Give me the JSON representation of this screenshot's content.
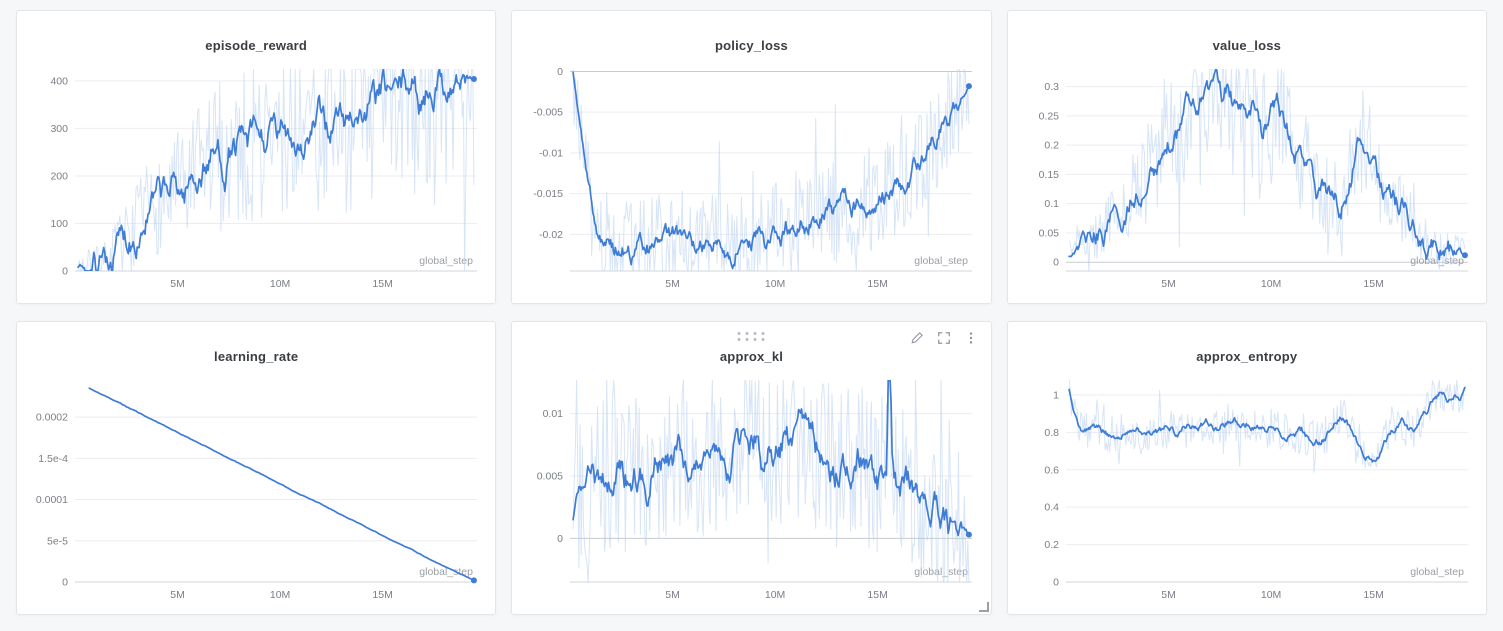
{
  "page": {
    "colors": {
      "accent": "#3e7cd6",
      "raw_line": "#b7d0f0",
      "grid_line": "#ebedf0",
      "zero_line": "#c7cbd1",
      "axis_line": "#d2d6db",
      "tick_text": "#7a7e85",
      "axis_label_text": "#9a9ea5",
      "title_text": "#3a3d42",
      "panel_bg": "#ffffff",
      "page_bg": "#f6f7f9"
    },
    "panel_controls": {
      "icons": [
        "drag-handle-icon",
        "edit-icon",
        "fullscreen-icon",
        "kebab-menu-icon",
        "resize-handle"
      ]
    }
  },
  "chart_data": [
    {
      "type": "line",
      "title": "episode_reward",
      "xlabel": "global_step",
      "xlim": [
        0,
        19.6
      ],
      "ylim": [
        0,
        425
      ],
      "x_ticks": [
        {
          "v": 5,
          "label": "5M"
        },
        {
          "v": 10,
          "label": "10M"
        },
        {
          "v": 15,
          "label": "15M"
        }
      ],
      "y_ticks": [
        {
          "v": 0,
          "label": "0"
        },
        {
          "v": 100,
          "label": "100"
        },
        {
          "v": 200,
          "label": "200"
        },
        {
          "v": 300,
          "label": "300"
        },
        {
          "v": 400,
          "label": "400"
        }
      ],
      "noise_amp": 170,
      "noise_scale_with_value": true,
      "end_dot": true,
      "series": [
        {
          "name": "smoothed",
          "x": [
            0.15,
            0.5,
            1,
            1.5,
            2,
            2.5,
            3,
            3.5,
            4,
            4.5,
            5,
            5.3,
            5.6,
            6,
            6.5,
            7,
            7.3,
            7.6,
            8,
            8.4,
            8.8,
            9.2,
            9.6,
            10,
            10.4,
            10.8,
            11.2,
            11.6,
            12,
            12.4,
            12.8,
            13.2,
            13.6,
            14,
            14.4,
            14.8,
            15.2,
            15.6,
            16,
            16.4,
            16.8,
            17,
            17.3,
            17.6,
            18,
            18.4,
            18.8,
            19.1,
            19.45
          ],
          "y": [
            8,
            8,
            12,
            22,
            50,
            70,
            95,
            125,
            140,
            155,
            175,
            160,
            185,
            205,
            235,
            250,
            230,
            255,
            270,
            245,
            280,
            260,
            285,
            265,
            300,
            285,
            270,
            295,
            310,
            295,
            325,
            310,
            340,
            330,
            345,
            360,
            375,
            365,
            385,
            395,
            350,
            380,
            395,
            405,
            400,
            400,
            402,
            400,
            404
          ]
        }
      ]
    },
    {
      "type": "line",
      "title": "policy_loss",
      "xlabel": "global_step",
      "xlim": [
        0,
        19.6
      ],
      "ylim": [
        -0.0245,
        0.0003
      ],
      "x_ticks": [
        {
          "v": 5,
          "label": "5M"
        },
        {
          "v": 10,
          "label": "10M"
        },
        {
          "v": 15,
          "label": "15M"
        }
      ],
      "y_ticks": [
        {
          "v": 0,
          "label": "0"
        },
        {
          "v": -0.005,
          "label": "-0.005"
        },
        {
          "v": -0.01,
          "label": "-0.01"
        },
        {
          "v": -0.015,
          "label": "-0.015"
        },
        {
          "v": -0.02,
          "label": "-0.02"
        }
      ],
      "noise_amp": 0.0065,
      "noise_scale_with_value": false,
      "end_dot": true,
      "series": [
        {
          "name": "smoothed",
          "x": [
            0.15,
            0.3,
            0.5,
            0.7,
            0.9,
            1.1,
            1.4,
            1.7,
            2,
            2.4,
            2.8,
            3.2,
            3.6,
            4,
            4.4,
            4.8,
            5.2,
            5.6,
            6,
            6.4,
            6.8,
            7.2,
            7.6,
            8,
            8.4,
            8.8,
            9.2,
            9.6,
            10,
            10.4,
            10.8,
            11.2,
            11.6,
            12,
            12.4,
            12.8,
            13.2,
            13.6,
            14,
            14.4,
            14.8,
            15.2,
            15.6,
            16,
            16.4,
            16.8,
            17.2,
            17.6,
            18,
            18.4,
            18.8,
            19.2,
            19.45
          ],
          "y": [
            -0.0001,
            -0.003,
            -0.007,
            -0.011,
            -0.0145,
            -0.017,
            -0.0195,
            -0.021,
            -0.0215,
            -0.022,
            -0.0213,
            -0.0218,
            -0.021,
            -0.0215,
            -0.0208,
            -0.0213,
            -0.0205,
            -0.0212,
            -0.0217,
            -0.021,
            -0.0215,
            -0.0212,
            -0.0221,
            -0.0212,
            -0.0203,
            -0.021,
            -0.0205,
            -0.0208,
            -0.0198,
            -0.0193,
            -0.0188,
            -0.0183,
            -0.0185,
            -0.0178,
            -0.0172,
            -0.0176,
            -0.0168,
            -0.016,
            -0.0165,
            -0.0152,
            -0.0157,
            -0.0143,
            -0.0146,
            -0.0132,
            -0.0127,
            -0.0118,
            -0.0108,
            -0.0092,
            -0.0078,
            -0.006,
            -0.0045,
            -0.0028,
            -0.0018
          ]
        }
      ]
    },
    {
      "type": "line",
      "title": "value_loss",
      "xlabel": "global_step",
      "xlim": [
        0,
        19.6
      ],
      "ylim": [
        -0.015,
        0.33
      ],
      "x_ticks": [
        {
          "v": 5,
          "label": "5M"
        },
        {
          "v": 10,
          "label": "10M"
        },
        {
          "v": 15,
          "label": "15M"
        }
      ],
      "y_ticks": [
        {
          "v": 0,
          "label": "0"
        },
        {
          "v": 0.05,
          "label": "0.05"
        },
        {
          "v": 0.1,
          "label": "0.1"
        },
        {
          "v": 0.15,
          "label": "0.15"
        },
        {
          "v": 0.2,
          "label": "0.2"
        },
        {
          "v": 0.25,
          "label": "0.25"
        },
        {
          "v": 0.3,
          "label": "0.3"
        }
      ],
      "noise_amp": 0.1,
      "noise_scale_with_value": true,
      "end_dot": true,
      "series": [
        {
          "name": "smoothed",
          "x": [
            0.15,
            0.5,
            1,
            1.5,
            2,
            2.5,
            3,
            3.5,
            4,
            4.5,
            5,
            5.4,
            5.8,
            6.1,
            6.4,
            6.7,
            7,
            7.3,
            7.6,
            7.9,
            8.2,
            8.5,
            8.8,
            9.2,
            9.6,
            10,
            10.3,
            10.6,
            11,
            11.4,
            11.8,
            12.2,
            12.6,
            13,
            13.4,
            13.8,
            14.1,
            14.4,
            14.7,
            15,
            15.4,
            15.8,
            16.2,
            16.6,
            17,
            17.4,
            17.8,
            18.2,
            18.6,
            19,
            19.45
          ],
          "y": [
            0.01,
            0.02,
            0.04,
            0.05,
            0.06,
            0.08,
            0.1,
            0.13,
            0.15,
            0.17,
            0.2,
            0.22,
            0.25,
            0.28,
            0.24,
            0.26,
            0.29,
            0.31,
            0.28,
            0.3,
            0.27,
            0.29,
            0.25,
            0.26,
            0.22,
            0.24,
            0.27,
            0.23,
            0.2,
            0.18,
            0.16,
            0.13,
            0.12,
            0.11,
            0.1,
            0.14,
            0.18,
            0.22,
            0.19,
            0.16,
            0.12,
            0.1,
            0.095,
            0.085,
            0.06,
            0.04,
            0.025,
            0.02,
            0.02,
            0.015,
            0.012
          ]
        }
      ]
    },
    {
      "type": "line",
      "title": "learning_rate",
      "xlabel": "global_step",
      "xlim": [
        0,
        19.6
      ],
      "ylim": [
        0,
        0.000245
      ],
      "x_ticks": [
        {
          "v": 5,
          "label": "5M"
        },
        {
          "v": 10,
          "label": "10M"
        },
        {
          "v": 15,
          "label": "15M"
        }
      ],
      "y_ticks": [
        {
          "v": 0,
          "label": "0"
        },
        {
          "v": 5e-05,
          "label": "5e-5"
        },
        {
          "v": 0.0001,
          "label": "0.0001"
        },
        {
          "v": 0.00015,
          "label": "1.5e-4"
        },
        {
          "v": 0.0002,
          "label": "0.0002"
        }
      ],
      "noise_amp": 2e-06,
      "noise_scale_with_value": false,
      "show_raw": false,
      "end_dot": true,
      "series": [
        {
          "name": "value",
          "x": [
            0.7,
            2,
            4,
            6,
            8,
            10,
            12,
            14,
            16,
            18,
            19.45
          ],
          "y": [
            0.000235,
            0.000219,
            0.000194,
            0.000169,
            0.000144,
            0.000119,
            9.4e-05,
            6.9e-05,
            4.4e-05,
            1.9e-05,
            2e-06
          ]
        }
      ]
    },
    {
      "type": "line",
      "title": "approx_kl",
      "xlabel": "global_step",
      "xlim": [
        0,
        19.6
      ],
      "ylim": [
        -0.0035,
        0.0127
      ],
      "x_ticks": [
        {
          "v": 5,
          "label": "5M"
        },
        {
          "v": 10,
          "label": "10M"
        },
        {
          "v": 15,
          "label": "15M"
        }
      ],
      "y_ticks": [
        {
          "v": 0,
          "label": "0"
        },
        {
          "v": 0.005,
          "label": "0.005"
        },
        {
          "v": 0.01,
          "label": "0.01"
        }
      ],
      "noise_amp": 0.0065,
      "noise_scale_with_value": false,
      "end_dot": true,
      "controls_visible": true,
      "series": [
        {
          "name": "smoothed",
          "x": [
            0.15,
            0.3,
            0.6,
            1,
            1.4,
            1.8,
            2.2,
            2.6,
            3,
            3.4,
            3.8,
            4.2,
            4.6,
            5,
            5.4,
            5.8,
            6.2,
            6.6,
            7,
            7.4,
            7.8,
            8.2,
            8.6,
            9,
            9.4,
            9.8,
            10.2,
            10.6,
            11,
            11.4,
            11.8,
            12.2,
            12.6,
            13,
            13.4,
            13.8,
            14.2,
            14.6,
            15,
            15.25,
            15.45,
            15.55,
            15.7,
            16,
            16.4,
            16.8,
            17.2,
            17.6,
            18,
            18.4,
            18.8,
            19.2,
            19.45
          ],
          "y": [
            0.0015,
            0.003,
            0.004,
            0.0045,
            0.005,
            0.0042,
            0.0055,
            0.0048,
            0.0052,
            0.006,
            0.0052,
            0.0065,
            0.0055,
            0.006,
            0.0068,
            0.0058,
            0.007,
            0.006,
            0.0072,
            0.0063,
            0.0055,
            0.0065,
            0.007,
            0.0075,
            0.0062,
            0.0068,
            0.0073,
            0.008,
            0.0072,
            0.0085,
            0.0075,
            0.0065,
            0.006,
            0.0055,
            0.0058,
            0.0052,
            0.006,
            0.0052,
            0.0045,
            0.005,
            0.0048,
            0.02,
            0.006,
            0.0042,
            0.0038,
            0.0035,
            0.003,
            0.0028,
            0.0022,
            0.0018,
            0.001,
            0.0006,
            0.0003
          ]
        }
      ]
    },
    {
      "type": "line",
      "title": "approx_entropy",
      "xlabel": "global_step",
      "xlim": [
        0,
        19.6
      ],
      "ylim": [
        0,
        1.08
      ],
      "x_ticks": [
        {
          "v": 5,
          "label": "5M"
        },
        {
          "v": 10,
          "label": "10M"
        },
        {
          "v": 15,
          "label": "15M"
        }
      ],
      "y_ticks": [
        {
          "v": 0,
          "label": "0"
        },
        {
          "v": 0.2,
          "label": "0.2"
        },
        {
          "v": 0.4,
          "label": "0.4"
        },
        {
          "v": 0.6,
          "label": "0.6"
        },
        {
          "v": 0.8,
          "label": "0.8"
        },
        {
          "v": 1,
          "label": "1"
        }
      ],
      "noise_amp": 0.11,
      "noise_scale_with_value": false,
      "end_dot": false,
      "series": [
        {
          "name": "smoothed",
          "x": [
            0.15,
            0.35,
            0.6,
            0.85,
            1.1,
            1.5,
            2,
            2.5,
            3,
            3.5,
            4,
            4.5,
            5,
            5.5,
            6,
            6.5,
            7,
            7.5,
            8,
            8.5,
            9,
            9.5,
            10,
            10.5,
            11,
            11.5,
            12,
            12.4,
            12.8,
            13.1,
            13.4,
            13.8,
            14.2,
            14.6,
            15,
            15.3,
            15.7,
            16,
            16.4,
            16.8,
            17.1,
            17.4,
            17.8,
            18.1,
            18.4,
            18.7,
            19,
            19.2,
            19.45
          ],
          "y": [
            1.03,
            0.92,
            0.84,
            0.79,
            0.81,
            0.82,
            0.8,
            0.79,
            0.81,
            0.8,
            0.78,
            0.8,
            0.82,
            0.8,
            0.83,
            0.84,
            0.85,
            0.84,
            0.86,
            0.84,
            0.85,
            0.83,
            0.82,
            0.8,
            0.78,
            0.8,
            0.76,
            0.74,
            0.8,
            0.86,
            0.9,
            0.84,
            0.76,
            0.68,
            0.65,
            0.7,
            0.78,
            0.82,
            0.85,
            0.8,
            0.83,
            0.88,
            0.95,
            1.0,
            1.03,
            0.98,
            1.0,
            0.97,
            1.04
          ]
        }
      ]
    }
  ]
}
